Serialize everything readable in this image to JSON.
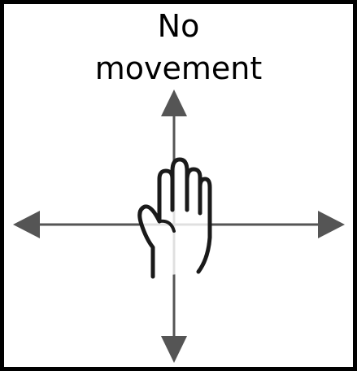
{
  "title": {
    "line1": "No",
    "line2": "movement"
  },
  "colors": {
    "border": "#000000",
    "arrow": "#555555",
    "hand_outline": "#1a1a1a",
    "hand_fill": "#ffffff",
    "background": "#ffffff"
  },
  "icons": {
    "center": "raised-hand-icon",
    "arrows": [
      "arrow-up",
      "arrow-down",
      "arrow-left",
      "arrow-right"
    ]
  }
}
